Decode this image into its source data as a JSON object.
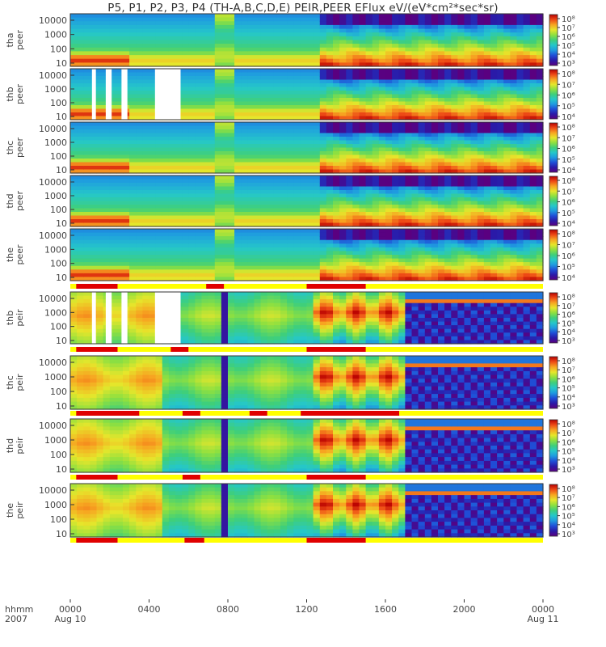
{
  "title": "P5, P1, P2, P3, P4 (TH-A,B,C,D,E) PEIR,PEER EFlux eV/(eV*cm²*sec*sr)",
  "colors": {
    "colormap": [
      "#5a0080",
      "#2a1aa8",
      "#1f4fd8",
      "#1f9be0",
      "#25c7c9",
      "#3fcf7a",
      "#8ee040",
      "#e6e62b",
      "#f7a521",
      "#ee4a16",
      "#b80000"
    ],
    "strip_bar_red": "#e00000",
    "strip_bar_yellow": "#ffff00",
    "ion_overlay": "#000000"
  },
  "chart_data": [
    {
      "type": "heatmap",
      "panel": "thb peer",
      "probe": "thb",
      "product": "peer",
      "ylabel": "thb\npeer",
      "yscale": "log",
      "ylim": [
        10,
        10000
      ],
      "yticks": [
        "10",
        "100",
        "1000",
        "10000"
      ],
      "colorbar_ticks": [
        "10⁴",
        "10⁵",
        "10⁶",
        "10⁷",
        "10⁸"
      ],
      "kind": "electron"
    },
    {
      "type": "heatmap",
      "panel": "thc peer",
      "probe": "thc",
      "product": "peer",
      "ylabel": "thc\npeer",
      "yscale": "log",
      "ylim": [
        10,
        10000
      ],
      "yticks": [
        "10",
        "100",
        "1000",
        "10000"
      ],
      "colorbar_ticks": [
        "10⁴",
        "10⁵",
        "10⁶",
        "10⁷",
        "10⁸"
      ],
      "kind": "electron"
    },
    {
      "type": "heatmap",
      "panel": "thd peer",
      "probe": "thd",
      "product": "peer",
      "ylabel": "thd\npeer",
      "yscale": "log",
      "ylim": [
        10,
        10000
      ],
      "yticks": [
        "10",
        "100",
        "1000",
        "10000"
      ],
      "colorbar_ticks": [
        "10⁴",
        "10⁵",
        "10⁶",
        "10⁷",
        "10⁸"
      ],
      "kind": "electron"
    },
    {
      "type": "heatmap",
      "panel": "the peer",
      "probe": "the",
      "product": "peer",
      "ylabel": "the\npeer",
      "yscale": "log",
      "ylim": [
        10,
        10000
      ],
      "yticks": [
        "10",
        "100",
        "1000",
        "10000"
      ],
      "colorbar_ticks": [
        "10⁴",
        "10⁵",
        "10⁶",
        "10⁷",
        "10⁸"
      ],
      "kind": "electron"
    },
    {
      "type": "heatmap",
      "panel": "thb peir",
      "probe": "thb",
      "product": "peir",
      "ylabel": "thb\npeir",
      "yscale": "log",
      "ylim": [
        10,
        10000
      ],
      "yticks": [
        "10",
        "100",
        "1000",
        "10000"
      ],
      "colorbar_ticks": [
        "10³",
        "10⁴",
        "10⁵",
        "10⁶",
        "10⁷",
        "10⁸"
      ],
      "kind": "ion"
    },
    {
      "type": "heatmap",
      "panel": "thc peir",
      "probe": "thc",
      "product": "peir",
      "ylabel": "thc\npeir",
      "yscale": "log",
      "ylim": [
        10,
        10000
      ],
      "yticks": [
        "10",
        "100",
        "1000",
        "10000"
      ],
      "colorbar_ticks": [
        "10³",
        "10⁴",
        "10⁵",
        "10⁶",
        "10⁷",
        "10⁸"
      ],
      "kind": "ion"
    },
    {
      "type": "heatmap",
      "panel": "thd peir",
      "probe": "thd",
      "product": "peir",
      "ylabel": "thd\npeir",
      "yscale": "log",
      "ylim": [
        10,
        10000
      ],
      "yticks": [
        "10",
        "100",
        "1000",
        "10000"
      ],
      "colorbar_ticks": [
        "10³",
        "10⁴",
        "10⁵",
        "10⁶",
        "10⁷",
        "10⁸"
      ],
      "kind": "ion"
    },
    {
      "type": "heatmap",
      "panel": "the peir",
      "probe": "the",
      "product": "peir",
      "ylabel": "the\npeir",
      "yscale": "log",
      "ylim": [
        10,
        10000
      ],
      "yticks": [
        "10",
        "100",
        "1000",
        "10000"
      ],
      "colorbar_ticks": [
        "10³",
        "10⁴",
        "10⁵",
        "10⁶",
        "10⁷",
        "10⁸"
      ],
      "kind": "ion"
    }
  ],
  "xaxis": {
    "prefix_label": [
      "hhmm",
      "2007"
    ],
    "range_hours": [
      0,
      24
    ],
    "ticks": [
      {
        "hour": 0,
        "label": "0000",
        "date": "Aug 10"
      },
      {
        "hour": 4,
        "label": "0400",
        "date": ""
      },
      {
        "hour": 8,
        "label": "0800",
        "date": ""
      },
      {
        "hour": 12,
        "label": "1200",
        "date": ""
      },
      {
        "hour": 16,
        "label": "1600",
        "date": ""
      },
      {
        "hour": 20,
        "label": "2000",
        "date": ""
      },
      {
        "hour": 24,
        "label": "0000",
        "date": "Aug 11"
      }
    ]
  },
  "strip_bars": [
    [
      [
        0.3,
        2.4
      ],
      [
        6.9,
        7.8
      ],
      [
        12.0,
        15.0
      ]
    ],
    [
      [
        0.3,
        2.4
      ],
      [
        5.1,
        6.0
      ],
      [
        12.0,
        15.0
      ]
    ],
    [
      [
        0.3,
        3.5
      ],
      [
        5.7,
        6.6
      ],
      [
        9.1,
        10.0
      ],
      [
        11.7,
        16.7
      ]
    ],
    [
      [
        0.3,
        2.4
      ],
      [
        5.7,
        6.6
      ],
      [
        12.0,
        15.0
      ]
    ],
    [
      [
        0.3,
        2.4
      ],
      [
        5.8,
        6.8
      ],
      [
        12.0,
        15.0
      ]
    ]
  ]
}
